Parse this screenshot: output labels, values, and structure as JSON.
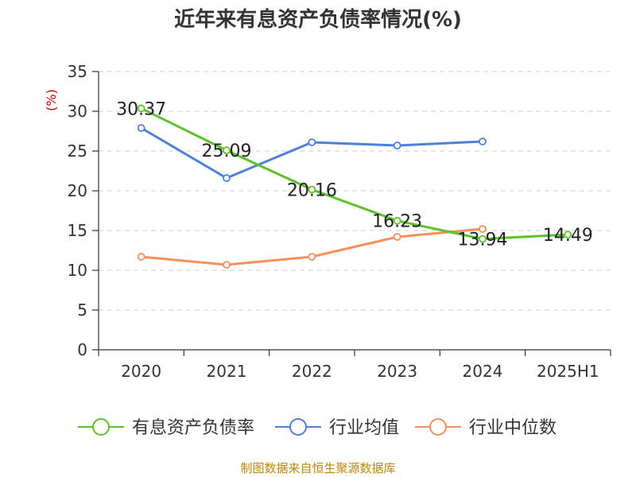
{
  "title": "近年来有息资产负债率情况(%)",
  "source": "制图数据来自恒生聚源数据库",
  "chart_data": {
    "type": "line",
    "title": "近年来有息资产负债率情况(%)",
    "ylabel": "(%)",
    "categories": [
      "2020",
      "2021",
      "2022",
      "2023",
      "2024",
      "2025H1"
    ],
    "ylim": [
      0,
      35
    ],
    "yticks": [
      0,
      5,
      10,
      15,
      20,
      25,
      30,
      35
    ],
    "grid": true,
    "legend_position": "bottom",
    "series": [
      {
        "name": "有息资产负债率",
        "color": "#5cc12b",
        "values": [
          30.37,
          25.09,
          20.16,
          16.23,
          13.94,
          14.49
        ],
        "labels": [
          "30.37",
          "25.09",
          "20.16",
          "16.23",
          "13.94",
          "14.49"
        ]
      },
      {
        "name": "行业均值",
        "color": "#4e80d6",
        "values": [
          27.9,
          21.6,
          26.1,
          25.7,
          26.2,
          null
        ]
      },
      {
        "name": "行业中位数",
        "color": "#f5905a",
        "values": [
          11.7,
          10.7,
          11.7,
          14.2,
          15.2,
          null
        ]
      }
    ]
  }
}
